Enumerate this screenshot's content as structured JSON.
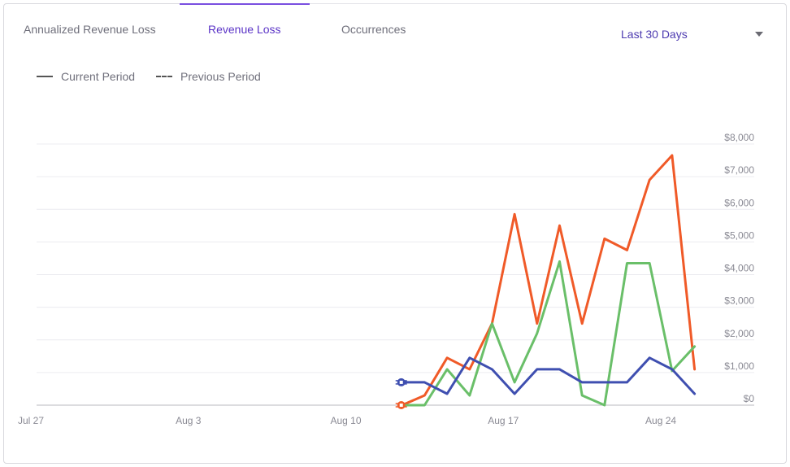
{
  "tabs": [
    {
      "label": "Annualized Revenue Loss",
      "active": false
    },
    {
      "label": "Revenue Loss",
      "active": true
    },
    {
      "label": "Occurrences",
      "active": false
    }
  ],
  "range_selector": {
    "label": "Last 30 Days"
  },
  "legend": {
    "current": "Current Period",
    "previous": "Previous Period"
  },
  "colors": {
    "accent": "#5b34c7",
    "series_orange": "#f05a28",
    "series_green": "#6abf69",
    "series_blue": "#3f4fb0"
  },
  "chart_data": {
    "type": "line",
    "y_ticks": [
      "$0",
      "$1,000",
      "$2,000",
      "$3,000",
      "$4,000",
      "$5,000",
      "$6,000",
      "$7,000",
      "$8,000"
    ],
    "ylim": [
      0,
      8000
    ],
    "x_ticks": [
      {
        "label": "Jul 27",
        "day": 0
      },
      {
        "label": "Aug 3",
        "day": 7
      },
      {
        "label": "Aug 10",
        "day": 14
      },
      {
        "label": "Aug 17",
        "day": 21
      },
      {
        "label": "Aug 24",
        "day": 28
      }
    ],
    "series": [
      {
        "color": "#f05a28",
        "start_day": 16.5,
        "values": [
          0,
          300,
          1450,
          1100,
          2500,
          5850,
          2500,
          5500,
          2500,
          5100,
          4750,
          6900,
          7650,
          1100
        ]
      },
      {
        "color": "#6abf69",
        "start_day": 16.5,
        "values": [
          0,
          0,
          1100,
          300,
          2500,
          700,
          2200,
          4400,
          300,
          0,
          4350,
          4350,
          1050,
          1800
        ]
      },
      {
        "color": "#3f4fb0",
        "start_day": 16.5,
        "values": [
          700,
          700,
          350,
          1450,
          1100,
          350,
          1100,
          1100,
          700,
          700,
          700,
          1450,
          1100,
          350
        ]
      }
    ]
  }
}
